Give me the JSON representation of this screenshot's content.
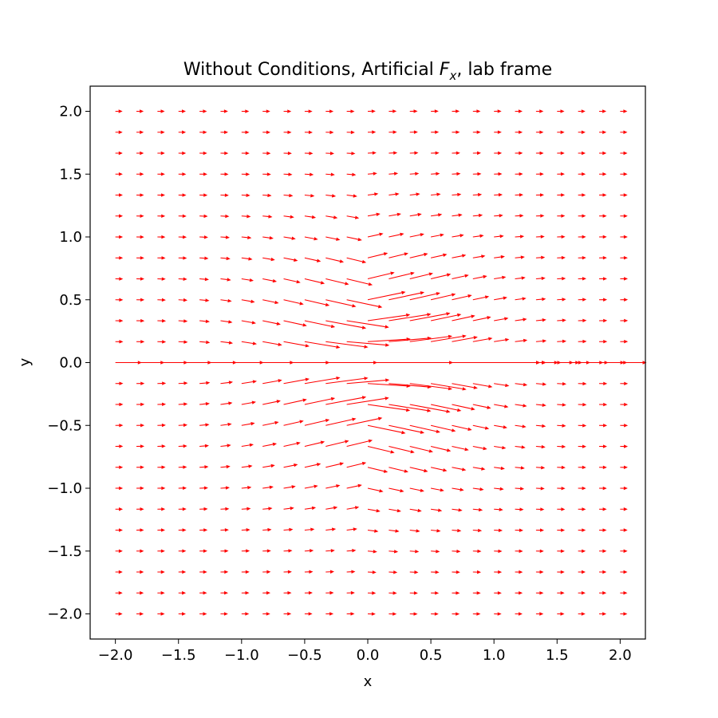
{
  "chart_data": {
    "type": "quiver",
    "title": "Without Conditions, Artificial F_x, lab frame",
    "title_parts": {
      "before": "Without Conditions, Artificial ",
      "symbol": "F",
      "subscript": "x",
      "after": ", lab frame"
    },
    "xlabel": "x",
    "ylabel": "y",
    "xlim": [
      -2.2,
      2.2
    ],
    "ylim": [
      -2.2,
      2.2
    ],
    "xticks": [
      -2.0,
      -1.5,
      -1.0,
      -0.5,
      0.0,
      0.5,
      1.0,
      1.5,
      2.0
    ],
    "yticks": [
      -2.0,
      -1.5,
      -1.0,
      -0.5,
      0.0,
      0.5,
      1.0,
      1.5,
      2.0
    ],
    "xtick_labels": [
      "−2.0",
      "−1.5",
      "−1.0",
      "−0.5",
      "0.0",
      "0.5",
      "1.0",
      "1.5",
      "2.0"
    ],
    "ytick_labels": [
      "−2.0",
      "−1.5",
      "−1.0",
      "−0.5",
      "0.0",
      "0.5",
      "1.0",
      "1.5",
      "2.0"
    ],
    "grid": {
      "x_start": -2.0,
      "x_end": 2.0,
      "y_start": -2.0,
      "y_end": 2.0,
      "n": 25
    },
    "color": "#ff0000",
    "grid_lines": false,
    "legend": "none"
  }
}
